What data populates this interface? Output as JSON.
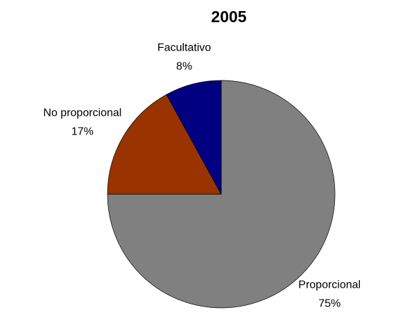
{
  "chart_data": {
    "type": "pie",
    "title": "2005",
    "categories": [
      "Proporcional",
      "No proporcional",
      "Facultativo"
    ],
    "values": [
      75,
      17,
      8
    ],
    "value_labels": [
      "75%",
      "17%",
      "8%"
    ],
    "colors": [
      "#808080",
      "#993300",
      "#000080"
    ]
  }
}
